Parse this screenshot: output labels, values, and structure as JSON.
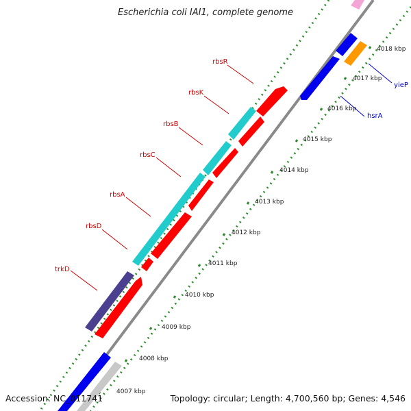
{
  "title": "Escherichia coli IAI1, complete genome",
  "accession": "Accession: NC_011741",
  "topology": "Topology: circular; Length: 4,700,560 bp; Genes: 4,546",
  "colors": {
    "backbone": "#8a8a8a",
    "tick": "#2e8b2e",
    "forward_gene": "#ff0000",
    "reverse_gene": "#0000ee",
    "cyan_gene": "#22cccc",
    "trk_gene": "#4b3f8f",
    "orange_gene": "#ff9900",
    "pink_gene": "#f3a6d6",
    "grey_gene": "#c8c8c8",
    "red_label": "#cc0000",
    "blue_label": "#0000cc"
  },
  "kbp_labels": [
    "4007 kbp",
    "4008 kbp",
    "4009 kbp",
    "4010 kbp",
    "4011 kbp",
    "4012 kbp",
    "4013 kbp",
    "4014 kbp",
    "4015 kbp",
    "4016 kbp",
    "4017 kbp",
    "4018 kbp"
  ],
  "gene_labels": {
    "rbsR": "rbsR",
    "rbsK": "rbsK",
    "rbsB": "rbsB",
    "rbsC": "rbsC",
    "rbsA": "rbsA",
    "rbsD": "rbsD",
    "trkD": "trkD",
    "yieP": "yieP",
    "hsrA": "hsrA"
  }
}
